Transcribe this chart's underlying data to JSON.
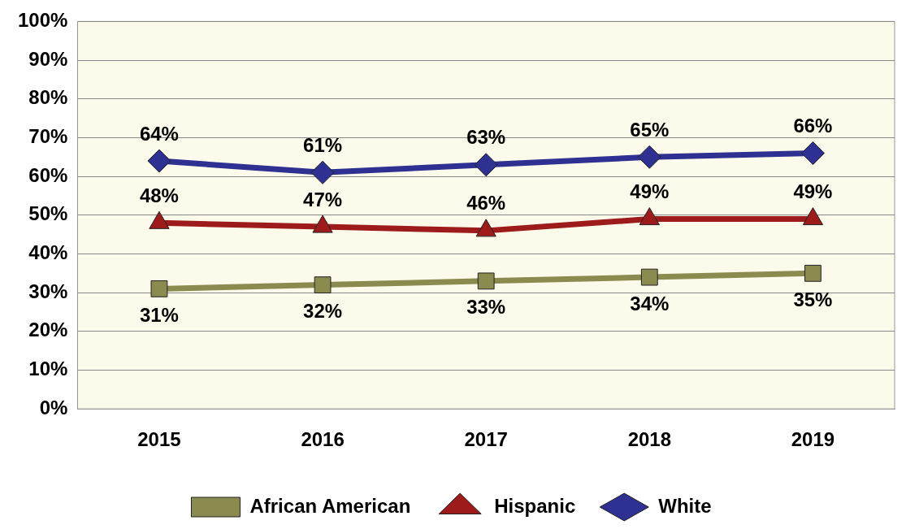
{
  "chart_data": {
    "type": "line",
    "categories": [
      "2015",
      "2016",
      "2017",
      "2018",
      "2019"
    ],
    "series": [
      {
        "name": "African American",
        "color": "#8b8a4f",
        "marker": "square",
        "values": [
          31,
          32,
          33,
          34,
          35
        ],
        "value_labels": [
          "31%",
          "32%",
          "33%",
          "34%",
          "35%"
        ]
      },
      {
        "name": "Hispanic",
        "color": "#9e1b1b",
        "marker": "triangle",
        "values": [
          48,
          47,
          46,
          49,
          49
        ],
        "value_labels": [
          "48%",
          "47%",
          "46%",
          "49%",
          "49%"
        ]
      },
      {
        "name": "White",
        "color": "#2e3192",
        "marker": "diamond",
        "values": [
          64,
          61,
          63,
          65,
          66
        ],
        "value_labels": [
          "64%",
          "61%",
          "63%",
          "65%",
          "66%"
        ]
      }
    ],
    "ylim": [
      0,
      100
    ],
    "yticks": [
      {
        "value": 0,
        "label": "0%"
      },
      {
        "value": 10,
        "label": "10%"
      },
      {
        "value": 20,
        "label": "20%"
      },
      {
        "value": 30,
        "label": "30%"
      },
      {
        "value": 40,
        "label": "40%"
      },
      {
        "value": 50,
        "label": "50%"
      },
      {
        "value": 60,
        "label": "60%"
      },
      {
        "value": 70,
        "label": "70%"
      },
      {
        "value": 80,
        "label": "80%"
      },
      {
        "value": 90,
        "label": "90%"
      },
      {
        "value": 100,
        "label": "100%"
      }
    ],
    "grid": "y",
    "legend": "bottom",
    "line_style": "solid"
  }
}
